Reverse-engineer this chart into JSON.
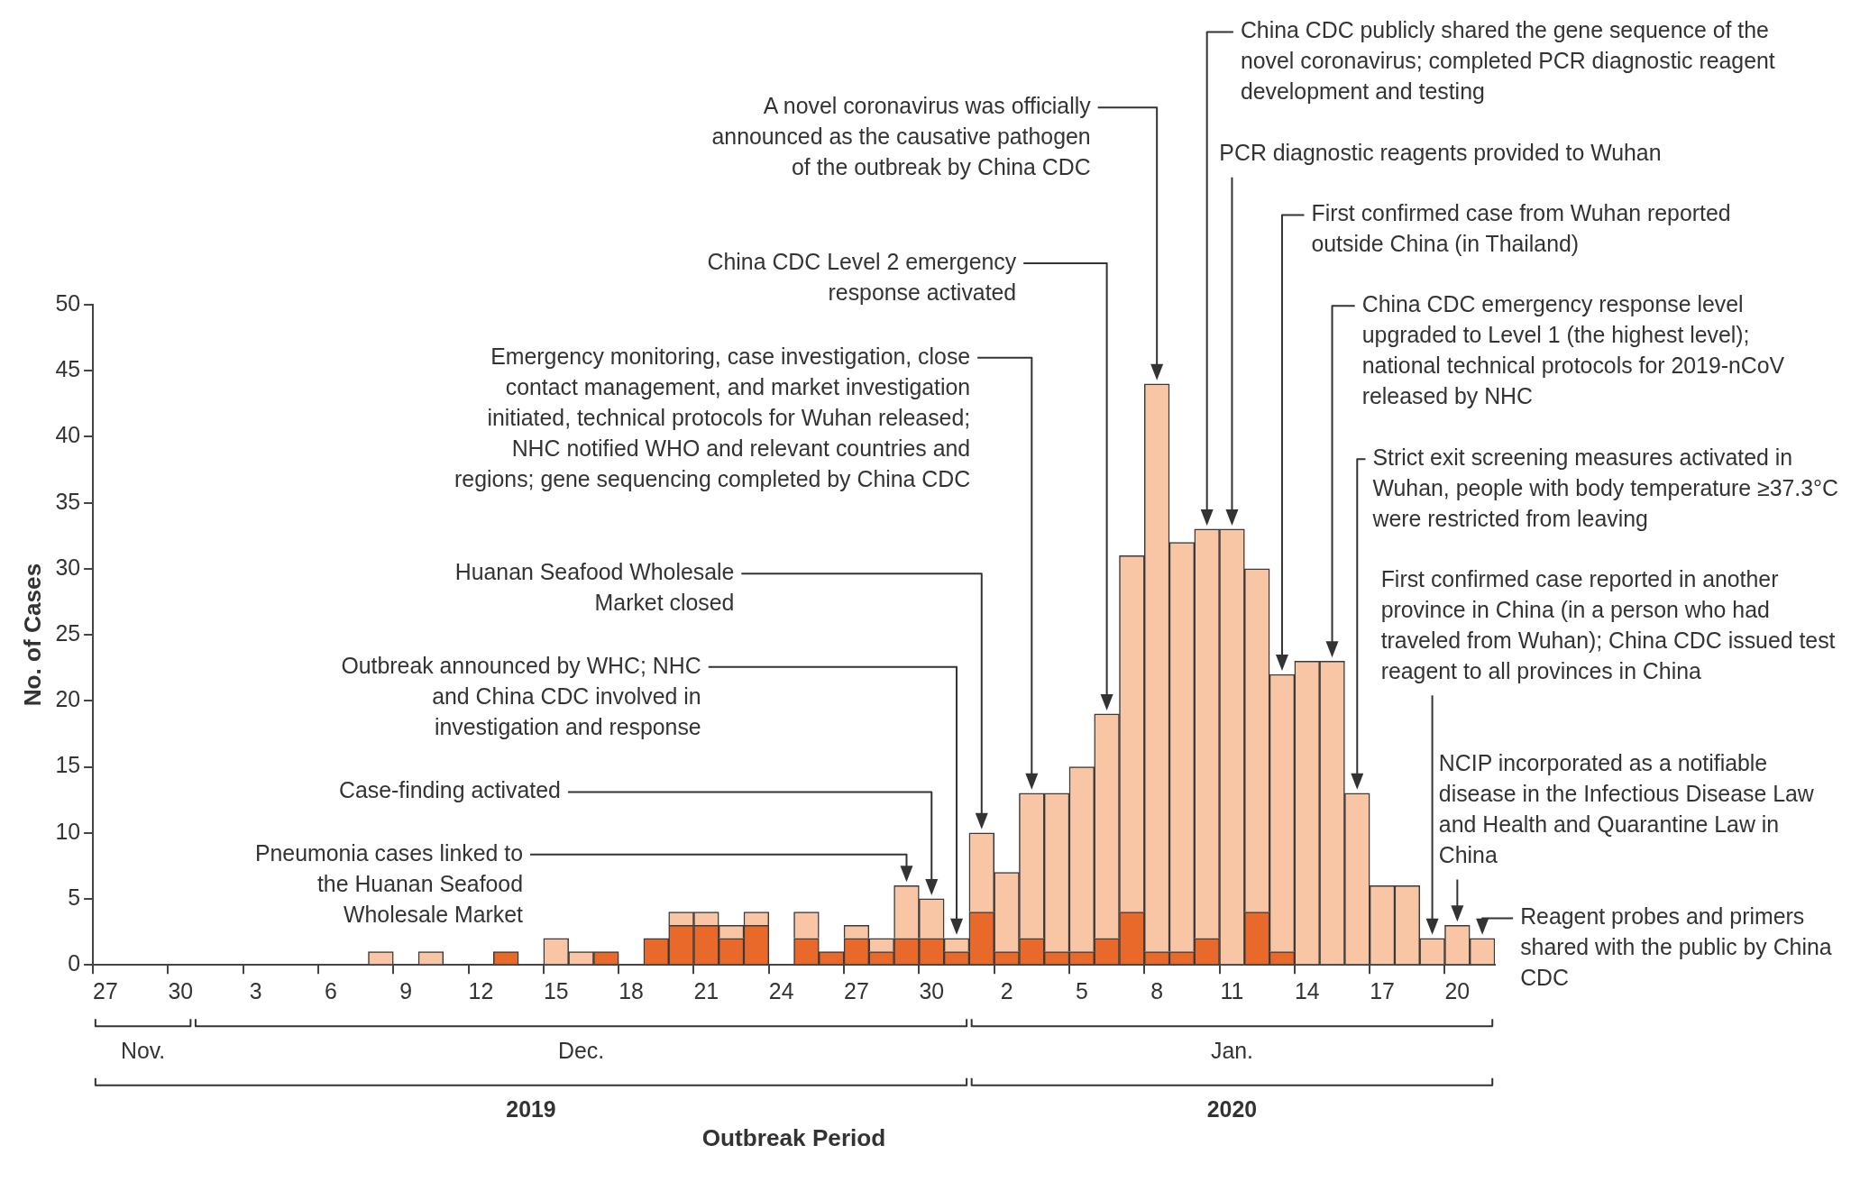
{
  "chart_data": {
    "type": "bar",
    "stacked": true,
    "ylabel": "No. of Cases",
    "categories": [
      "27",
      null,
      null,
      "30",
      null,
      null,
      "3",
      null,
      null,
      "6",
      null,
      null,
      "9",
      null,
      null,
      "12",
      null,
      null,
      "15",
      null,
      null,
      "18",
      null,
      null,
      "21",
      null,
      null,
      "24",
      null,
      null,
      "27",
      null,
      null,
      "30",
      null,
      null,
      "2",
      null,
      null,
      "5",
      null,
      null,
      "8",
      null,
      null,
      "11",
      null,
      null,
      "14",
      null,
      null,
      "17",
      null,
      null,
      "20",
      null
    ],
    "series": [
      {
        "color": "#e8692a",
        "values": [
          0,
          0,
          0,
          0,
          0,
          0,
          0,
          0,
          0,
          0,
          0,
          0,
          0,
          0,
          0,
          0,
          1,
          0,
          0,
          0,
          1,
          0,
          2,
          3,
          3,
          2,
          3,
          0,
          2,
          1,
          2,
          1,
          2,
          2,
          1,
          4,
          1,
          2,
          1,
          1,
          2,
          4,
          1,
          1,
          2,
          0,
          4,
          1,
          0,
          0,
          0,
          0,
          0,
          0,
          0,
          0
        ]
      },
      {
        "color": "#f9c6a5",
        "values": [
          0,
          0,
          0,
          0,
          0,
          0,
          0,
          0,
          0,
          0,
          0,
          1,
          0,
          1,
          0,
          0,
          0,
          0,
          2,
          1,
          0,
          0,
          0,
          1,
          1,
          1,
          1,
          0,
          2,
          0,
          1,
          1,
          4,
          3,
          1,
          6,
          6,
          11,
          12,
          14,
          17,
          27,
          43,
          31,
          31,
          33,
          26,
          21,
          23,
          23,
          13,
          6,
          6,
          2,
          3,
          2
        ]
      }
    ],
    "ylim": [
      0,
      50
    ],
    "yticks": [
      0,
      5,
      10,
      15,
      20,
      25,
      30,
      35,
      40,
      45,
      50
    ],
    "grid": false,
    "legend": false,
    "annotations": [
      "Pneumonia cases linked to the Huanan Seafood Wholesale Market",
      "Case-finding activated",
      "Outbreak announced by WHC; NHC and China CDC involved in investigation and response",
      "Huanan Seafood Wholesale Market closed",
      "Emergency monitoring, case investigation, close contact management, and market investigation initiated, technical protocols for Wuhan released; NHC notified WHO and relevant countries and regions; gene sequencing completed by China CDC",
      "China CDC Level 2 emergency response activated",
      "A novel coronavirus was officially announced as the causative pathogen of the outbreak by China CDC",
      "China CDC publicly shared the gene sequence of the novel coronavirus; completed PCR diagnostic reagent development and testing",
      "PCR diagnostic reagents provided to Wuhan",
      "First confirmed case from Wuhan reported outside China (in Thailand)",
      "China CDC emergency response level upgraded to Level 1 (the highest level); national technical protocols for 2019-nCoV released by NHC",
      "Strict exit screening measures activated in Wuhan, people with body temperature ≥37.3°C were restricted from leaving",
      "First confirmed case reported in another province in China (in a person who had traveled from Wuhan); China CDC issued test reagent to all provinces in China",
      "NCIP incorporated as a notifiable disease in the Infectious Disease Law and Health and Quarantine Law in China",
      "Reagent probes and primers shared with the public by China CDC",
      "Nov.",
      "Dec.",
      "Jan.",
      "2019",
      "2020",
      "Outbreak Period"
    ]
  }
}
